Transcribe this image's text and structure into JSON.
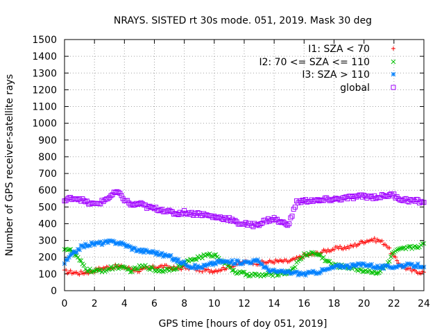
{
  "chart_data": {
    "type": "scatter",
    "title": "NRAYS. SISTED rt 30s mode. 051, 2019. Mask 30 deg",
    "xlabel": "GPS time [hours of doy 051, 2019]",
    "ylabel": "Number of GPS receiver-satellite rays",
    "xlim": [
      0,
      24
    ],
    "ylim": [
      0,
      1500
    ],
    "xticks": [
      0,
      2,
      4,
      6,
      8,
      10,
      12,
      14,
      16,
      18,
      20,
      22,
      24
    ],
    "yticks": [
      0,
      100,
      200,
      300,
      400,
      500,
      600,
      700,
      800,
      900,
      1000,
      1100,
      1200,
      1300,
      1400,
      1500
    ],
    "grid": true,
    "legend_position": "top-right",
    "series": [
      {
        "name": "I1: SZA < 70",
        "marker": "+",
        "color": "#ff0000",
        "x": [
          0,
          0.5,
          1,
          1.5,
          2,
          2.5,
          3,
          3.5,
          4,
          4.5,
          5,
          5.5,
          6,
          6.5,
          7,
          7.5,
          8,
          8.5,
          9,
          9.5,
          10,
          10.5,
          11,
          11.5,
          12,
          12.5,
          13,
          13.5,
          14,
          14.5,
          15,
          15.5,
          16,
          16.5,
          17,
          17.5,
          18,
          18.5,
          19,
          19.5,
          20,
          20.5,
          21,
          21.5,
          22,
          22.5,
          23,
          23.5,
          24
        ],
        "y": [
          115,
          110,
          105,
          110,
          120,
          135,
          140,
          145,
          140,
          130,
          120,
          130,
          140,
          145,
          140,
          130,
          140,
          135,
          125,
          120,
          120,
          130,
          145,
          160,
          170,
          170,
          165,
          170,
          175,
          175,
          175,
          190,
          210,
          215,
          225,
          240,
          250,
          255,
          260,
          275,
          295,
          305,
          300,
          275,
          200,
          150,
          125,
          115,
          110
        ]
      },
      {
        "name": "I2: 70 <= SZA <= 110",
        "marker": "x",
        "color": "#00c000",
        "x": [
          0,
          0.5,
          1,
          1.5,
          2,
          2.5,
          3,
          3.5,
          4,
          4.5,
          5,
          5.5,
          6,
          6.5,
          7,
          7.5,
          8,
          8.5,
          9,
          9.5,
          10,
          10.5,
          11,
          11.5,
          12,
          12.5,
          13,
          13.5,
          14,
          14.5,
          15,
          15.5,
          16,
          16.5,
          17,
          17.5,
          18,
          18.5,
          19,
          19.5,
          20,
          20.5,
          21,
          21.5,
          22,
          22.5,
          23,
          23.5,
          24
        ],
        "y": [
          255,
          235,
          180,
          125,
          115,
          120,
          130,
          145,
          130,
          120,
          140,
          145,
          125,
          120,
          130,
          140,
          160,
          185,
          200,
          210,
          215,
          185,
          140,
          110,
          100,
          95,
          90,
          95,
          100,
          105,
          110,
          160,
          215,
          225,
          215,
          180,
          150,
          145,
          140,
          130,
          120,
          115,
          110,
          150,
          230,
          245,
          255,
          265,
          275
        ]
      },
      {
        "name": "I3: SZA > 110",
        "marker": "*",
        "color": "#0080ff",
        "x": [
          0,
          0.5,
          1,
          1.5,
          2,
          2.5,
          3,
          3.5,
          4,
          4.5,
          5,
          5.5,
          6,
          6.5,
          7,
          7.5,
          8,
          8.5,
          9,
          9.5,
          10,
          10.5,
          11,
          11.5,
          12,
          12.5,
          13,
          13.5,
          14,
          14.5,
          15,
          15.5,
          16,
          16.5,
          17,
          17.5,
          18,
          18.5,
          19,
          19.5,
          20,
          20.5,
          21,
          21.5,
          22,
          22.5,
          23,
          23.5,
          24
        ],
        "y": [
          165,
          215,
          255,
          275,
          280,
          285,
          290,
          290,
          275,
          255,
          240,
          235,
          230,
          215,
          205,
          180,
          165,
          145,
          140,
          150,
          165,
          175,
          170,
          170,
          170,
          175,
          175,
          130,
          115,
          110,
          110,
          105,
          100,
          105,
          115,
          125,
          140,
          150,
          145,
          150,
          160,
          150,
          140,
          140,
          145,
          150,
          150,
          150,
          150
        ]
      },
      {
        "name": "global",
        "marker": "square",
        "color": "#a000ff",
        "x": [
          0,
          0.5,
          1,
          1.5,
          2,
          2.5,
          3,
          3.5,
          4,
          4.5,
          5,
          5.5,
          6,
          6.5,
          7,
          7.5,
          8,
          8.5,
          9,
          9.5,
          10,
          10.5,
          11,
          11.5,
          12,
          12.5,
          13,
          13.5,
          14,
          14.5,
          15,
          15.5,
          16,
          16.5,
          17,
          17.5,
          18,
          18.5,
          19,
          19.5,
          20,
          20.5,
          21,
          21.5,
          22,
          22.5,
          23,
          23.5,
          24
        ],
        "y": [
          535,
          555,
          550,
          525,
          515,
          530,
          560,
          590,
          545,
          510,
          520,
          500,
          490,
          485,
          470,
          460,
          470,
          460,
          460,
          450,
          440,
          435,
          430,
          405,
          400,
          390,
          400,
          420,
          430,
          405,
          400,
          530,
          535,
          540,
          535,
          545,
          545,
          550,
          555,
          560,
          565,
          560,
          560,
          570,
          570,
          545,
          540,
          535,
          530
        ]
      }
    ]
  }
}
